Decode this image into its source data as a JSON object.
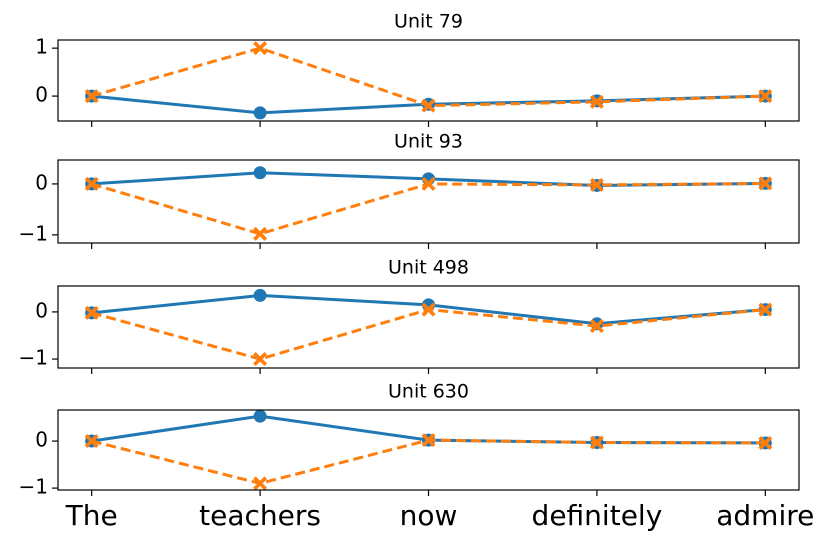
{
  "chart_data": [
    {
      "type": "line",
      "title": "Unit 79",
      "ylim": [
        -0.52,
        1.17
      ],
      "yticks": [
        0,
        1
      ],
      "series": [
        {
          "color": "#1f77b4",
          "marker": "circle",
          "linestyle": "solid",
          "values": [
            0,
            -0.35,
            -0.17,
            -0.1,
            0
          ]
        },
        {
          "color": "#ff7f0e",
          "marker": "x",
          "linestyle": "dashed",
          "values": [
            0,
            1,
            -0.2,
            -0.12,
            0
          ]
        }
      ]
    },
    {
      "type": "line",
      "title": "Unit 93",
      "ylim": [
        -1.16,
        0.47
      ],
      "yticks": [
        {
          "value": -1,
          "label": "−1"
        },
        0
      ],
      "series": [
        {
          "color": "#1f77b4",
          "marker": "circle",
          "linestyle": "solid",
          "values": [
            0,
            0.22,
            0.1,
            -0.03,
            0.01
          ]
        },
        {
          "color": "#ff7f0e",
          "marker": "x",
          "linestyle": "dashed",
          "values": [
            0,
            -0.98,
            0,
            -0.02,
            0.01
          ]
        }
      ]
    },
    {
      "type": "line",
      "title": "Unit 498",
      "ylim": [
        -1.19,
        0.55
      ],
      "yticks": [
        {
          "value": -1,
          "label": "−1"
        },
        0
      ],
      "series": [
        {
          "color": "#1f77b4",
          "marker": "circle",
          "linestyle": "solid",
          "values": [
            -0.02,
            0.35,
            0.15,
            -0.25,
            0.05
          ]
        },
        {
          "color": "#ff7f0e",
          "marker": "x",
          "linestyle": "dashed",
          "values": [
            -0.02,
            -1,
            0.05,
            -0.3,
            0.05
          ]
        }
      ]
    },
    {
      "type": "line",
      "title": "Unit 630",
      "ylim": [
        -1.04,
        0.66
      ],
      "yticks": [
        {
          "value": -1,
          "label": "−1"
        },
        0
      ],
      "categories": [
        "The",
        "teachers",
        "now",
        "definitely",
        "admire"
      ],
      "series": [
        {
          "color": "#1f77b4",
          "marker": "circle",
          "linestyle": "solid",
          "values": [
            0,
            0.53,
            0.02,
            -0.03,
            -0.04
          ]
        },
        {
          "color": "#ff7f0e",
          "marker": "x",
          "linestyle": "dashed",
          "values": [
            0,
            -0.9,
            0.02,
            -0.03,
            -0.04
          ]
        }
      ]
    }
  ]
}
